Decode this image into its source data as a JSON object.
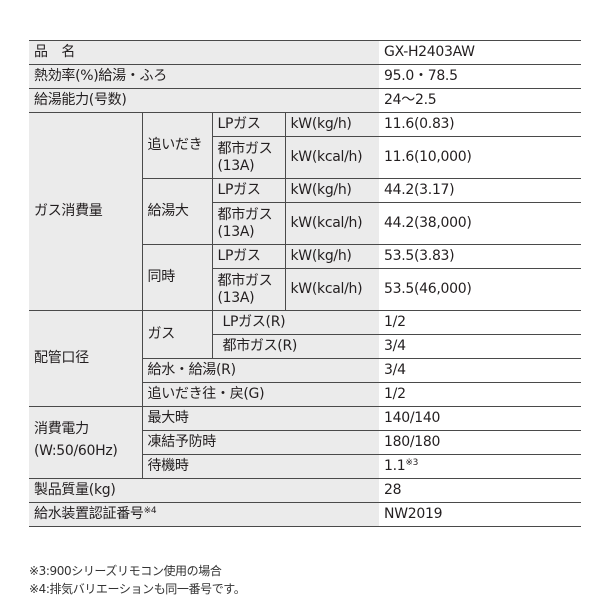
{
  "rows": {
    "product_name": {
      "label": "品　名",
      "value": "GX-H2403AW"
    },
    "efficiency": {
      "label": "熱効率(%)給湯・ふろ",
      "value": "95.0・78.5"
    },
    "capacity": {
      "label": "給湯能力(号数)",
      "value": "24〜2.5"
    },
    "gas_consumption": {
      "label": "ガス消費量",
      "groups": [
        {
          "label": "追いだき",
          "lp": {
            "gas": "LPガス",
            "unit": "kW(kg/h)",
            "value": "11.6(0.83)"
          },
          "city": {
            "gas": "都市ガス",
            "gas2": "(13A)",
            "unit": "kW(kcal/h)",
            "value": "11.6(10,000)"
          }
        },
        {
          "label": "給湯大",
          "lp": {
            "gas": "LPガス",
            "unit": "kW(kg/h)",
            "value": "44.2(3.17)"
          },
          "city": {
            "gas": "都市ガス",
            "gas2": "(13A)",
            "unit": "kW(kcal/h)",
            "value": "44.2(38,000)"
          }
        },
        {
          "label": "同時",
          "lp": {
            "gas": "LPガス",
            "unit": "kW(kg/h)",
            "value": "53.5(3.83)"
          },
          "city": {
            "gas": "都市ガス",
            "gas2": "(13A)",
            "unit": "kW(kcal/h)",
            "value": "53.5(46,000)"
          }
        }
      ]
    },
    "piping": {
      "label": "配管口径",
      "gas_label": "ガス",
      "lp": {
        "label": "LPガス(R)",
        "value": "1/2"
      },
      "city": {
        "label": "都市ガス(R)",
        "value": "3/4"
      },
      "water": {
        "label": "給水・給湯(R)",
        "value": "3/4"
      },
      "reheat": {
        "label": "追いだき往・戻(G)",
        "value": "1/2"
      }
    },
    "power": {
      "label": "消費電力",
      "label2": "(W:50/60Hz)",
      "max": {
        "label": "最大時",
        "value": "140/140"
      },
      "freeze": {
        "label": "凍結予防時",
        "value": "180/180"
      },
      "standby": {
        "label": "待機時",
        "value": "1.1",
        "note": "※3"
      }
    },
    "weight": {
      "label": "製品質量(kg)",
      "value": "28"
    },
    "cert": {
      "label": "給水装置認証番号",
      "note": "※4",
      "value": "NW2019"
    }
  },
  "footnotes": [
    "※3:900シリーズリモコン使用の場合",
    "※4:排気バリエーションも同一番号です。"
  ]
}
